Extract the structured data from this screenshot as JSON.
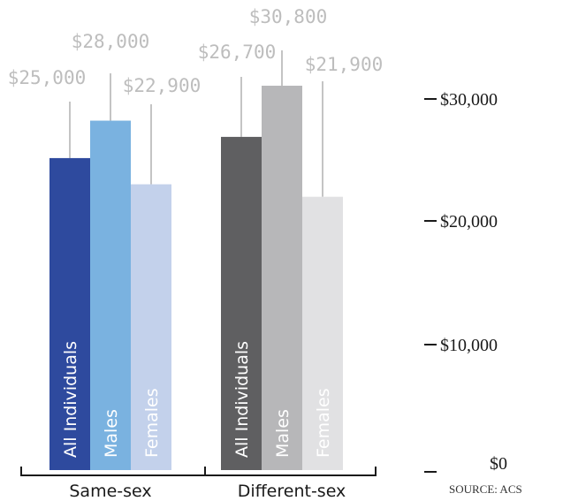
{
  "chart_data": {
    "type": "bar",
    "groups": [
      {
        "name": "Same-sex",
        "bars": [
          {
            "label": "All Individuals",
            "value": 25000,
            "value_label": "$25,000",
            "color": "#2e4a9e",
            "text_color": "#ffffff"
          },
          {
            "label": "Males",
            "value": 28000,
            "value_label": "$28,000",
            "color": "#7ab2e0",
            "text_color": "#ffffff"
          },
          {
            "label": "Females",
            "value": 22900,
            "value_label": "$22,900",
            "color": "#c3d1eb",
            "text_color": "#ffffff"
          }
        ]
      },
      {
        "name": "Different-sex",
        "bars": [
          {
            "label": "All Individuals",
            "value": 26700,
            "value_label": "$26,700",
            "color": "#5f5f61",
            "text_color": "#ffffff"
          },
          {
            "label": "Males",
            "value": 30800,
            "value_label": "$30,800",
            "color": "#b7b7b9",
            "text_color": "#ffffff"
          },
          {
            "label": "Females",
            "value": 21900,
            "value_label": "$21,900",
            "color": "#e1e1e3",
            "text_color": "#ffffff"
          }
        ]
      }
    ],
    "y_ticks": [
      {
        "value": 0,
        "label": "$0"
      },
      {
        "value": 10000,
        "label": "$10,000"
      },
      {
        "value": 20000,
        "label": "$20,000"
      },
      {
        "value": 30000,
        "label": "$30,000"
      }
    ],
    "ylim": [
      0,
      31000
    ],
    "source": "SOURCE: ACS"
  }
}
